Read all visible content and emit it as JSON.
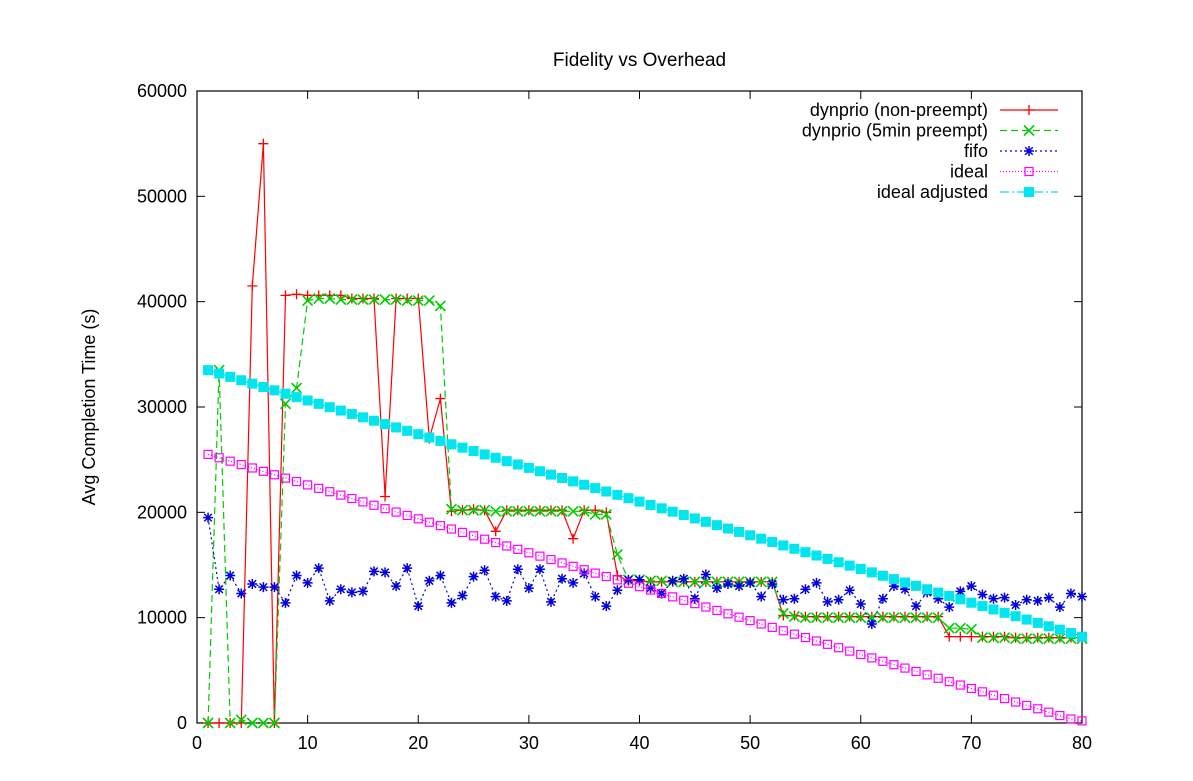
{
  "chart_data": {
    "type": "line",
    "title": "Fidelity vs Overhead",
    "xlabel": "",
    "ylabel": "Avg Completion Time (s)",
    "xlim": [
      0,
      80
    ],
    "ylim": [
      0,
      60000
    ],
    "xticks": [
      0,
      10,
      20,
      30,
      40,
      50,
      60,
      70,
      80
    ],
    "yticks": [
      0,
      10000,
      20000,
      30000,
      40000,
      50000,
      60000
    ],
    "grid": false,
    "legend_position": "top-right",
    "series": [
      {
        "name": "dynprio (non-preempt)",
        "color": "#ff0000",
        "marker": "plus",
        "dash": "",
        "x": [
          1,
          2,
          3,
          4,
          5,
          6,
          7,
          8,
          9,
          10,
          11,
          12,
          13,
          14,
          15,
          16,
          17,
          18,
          19,
          20,
          21,
          22,
          23,
          24,
          25,
          26,
          27,
          28,
          29,
          30,
          31,
          32,
          33,
          34,
          35,
          36,
          37,
          38,
          39,
          40,
          41,
          42,
          43,
          44,
          45,
          46,
          47,
          48,
          49,
          50,
          51,
          52,
          53,
          54,
          55,
          56,
          57,
          58,
          59,
          60,
          61,
          62,
          63,
          64,
          65,
          66,
          67,
          68,
          69,
          70,
          71,
          72,
          73,
          74,
          75,
          76,
          77,
          78,
          79,
          80
        ],
        "y": [
          0,
          0,
          0,
          0,
          41500,
          55000,
          0,
          40600,
          40700,
          40600,
          40600,
          40600,
          40600,
          40300,
          40300,
          40300,
          21500,
          40300,
          40300,
          40300,
          27000,
          30800,
          20100,
          20200,
          20300,
          20200,
          18200,
          20200,
          20200,
          20200,
          20200,
          20200,
          20200,
          17500,
          20200,
          20200,
          20000,
          14000,
          13500,
          13500,
          13400,
          13400,
          13400,
          13400,
          13400,
          13400,
          13400,
          13400,
          13400,
          13400,
          13400,
          13400,
          10200,
          10200,
          10100,
          10100,
          10100,
          10100,
          10100,
          10100,
          10100,
          10100,
          10100,
          10100,
          10100,
          10100,
          10100,
          8200,
          8200,
          8200,
          8200,
          8200,
          8200,
          8100,
          8100,
          8100,
          8100,
          8100,
          8100,
          8100
        ]
      },
      {
        "name": "dynprio (5min preempt)",
        "color": "#00cc00",
        "marker": "x",
        "dash": "7,4",
        "x": [
          1,
          2,
          3,
          4,
          5,
          6,
          7,
          8,
          9,
          10,
          11,
          12,
          13,
          14,
          15,
          16,
          17,
          18,
          19,
          20,
          21,
          22,
          23,
          24,
          25,
          26,
          27,
          28,
          29,
          30,
          31,
          32,
          33,
          34,
          35,
          36,
          37,
          38,
          39,
          40,
          41,
          42,
          43,
          44,
          45,
          46,
          47,
          48,
          49,
          50,
          51,
          52,
          53,
          54,
          55,
          56,
          57,
          58,
          59,
          60,
          61,
          62,
          63,
          64,
          65,
          66,
          67,
          68,
          69,
          70,
          71,
          72,
          73,
          74,
          75,
          76,
          77,
          78,
          79,
          80
        ],
        "y": [
          0,
          33500,
          0,
          300,
          0,
          0,
          0,
          30300,
          31800,
          40100,
          40300,
          40300,
          40200,
          40200,
          40200,
          40200,
          40200,
          40200,
          40100,
          40100,
          40100,
          39600,
          20300,
          20200,
          20200,
          20200,
          20100,
          20100,
          20100,
          20100,
          20100,
          20100,
          20100,
          20100,
          20100,
          19800,
          19800,
          16000,
          13600,
          13600,
          13500,
          13500,
          13400,
          13400,
          13400,
          13400,
          13400,
          13400,
          13400,
          13400,
          13400,
          13400,
          10400,
          10100,
          10000,
          10000,
          10000,
          10000,
          10000,
          10000,
          10000,
          10000,
          10000,
          10000,
          10000,
          10000,
          10000,
          9000,
          9000,
          8900,
          8100,
          8100,
          8100,
          8000,
          8000,
          8000,
          8000,
          8000,
          8000,
          8000
        ]
      },
      {
        "name": "fifo",
        "color": "#0000dd",
        "marker": "star",
        "dash": "2,3",
        "x": [
          1,
          2,
          3,
          4,
          5,
          6,
          7,
          8,
          9,
          10,
          11,
          12,
          13,
          14,
          15,
          16,
          17,
          18,
          19,
          20,
          21,
          22,
          23,
          24,
          25,
          26,
          27,
          28,
          29,
          30,
          31,
          32,
          33,
          34,
          35,
          36,
          37,
          38,
          39,
          40,
          41,
          42,
          43,
          44,
          45,
          46,
          47,
          48,
          49,
          50,
          51,
          52,
          53,
          54,
          55,
          56,
          57,
          58,
          59,
          60,
          61,
          62,
          63,
          64,
          65,
          66,
          67,
          68,
          69,
          70,
          71,
          72,
          73,
          74,
          75,
          76,
          77,
          78,
          79,
          80
        ],
        "y": [
          19500,
          12700,
          14000,
          12300,
          13200,
          12900,
          12900,
          11400,
          14000,
          13300,
          14700,
          11600,
          12700,
          12400,
          12500,
          14400,
          14300,
          13000,
          14700,
          11100,
          13500,
          14000,
          11400,
          12100,
          13900,
          14500,
          12000,
          11600,
          14600,
          12800,
          14600,
          11500,
          13700,
          13300,
          14200,
          12000,
          11100,
          12600,
          13600,
          13600,
          12800,
          12300,
          13500,
          13700,
          11800,
          14100,
          12800,
          13200,
          13000,
          13300,
          12000,
          13200,
          11700,
          11800,
          12700,
          13300,
          11500,
          11700,
          12600,
          11300,
          9400,
          11800,
          13000,
          12700,
          11100,
          12400,
          11800,
          11000,
          12500,
          13000,
          12200,
          11800,
          11900,
          11200,
          11700,
          11600,
          11900,
          11000,
          12300,
          12000
        ]
      },
      {
        "name": "ideal",
        "color": "#ff00ff",
        "marker": "square",
        "dash": "1,2",
        "x": [
          1,
          2,
          3,
          4,
          5,
          6,
          7,
          8,
          9,
          10,
          11,
          12,
          13,
          14,
          15,
          16,
          17,
          18,
          19,
          20,
          21,
          22,
          23,
          24,
          25,
          26,
          27,
          28,
          29,
          30,
          31,
          32,
          33,
          34,
          35,
          36,
          37,
          38,
          39,
          40,
          41,
          42,
          43,
          44,
          45,
          46,
          47,
          48,
          49,
          50,
          51,
          52,
          53,
          54,
          55,
          56,
          57,
          58,
          59,
          60,
          61,
          62,
          63,
          64,
          65,
          66,
          67,
          68,
          69,
          70,
          71,
          72,
          73,
          74,
          75,
          76,
          77,
          78,
          79,
          80
        ],
        "y": [
          25500,
          25178,
          24856,
          24534,
          24212,
          23890,
          23568,
          23246,
          22924,
          22602,
          22280,
          21958,
          21636,
          21314,
          20992,
          20670,
          20348,
          20026,
          19704,
          19382,
          19060,
          18738,
          18416,
          18094,
          17772,
          17450,
          17128,
          16806,
          16484,
          16162,
          15840,
          15518,
          15196,
          14874,
          14552,
          14230,
          13908,
          13586,
          13264,
          12942,
          12620,
          12298,
          11976,
          11654,
          11332,
          11010,
          10688,
          10366,
          10044,
          9722,
          9400,
          9078,
          8756,
          8434,
          8112,
          7790,
          7468,
          7146,
          6824,
          6502,
          6180,
          5858,
          5536,
          5214,
          4892,
          4570,
          4248,
          3926,
          3604,
          3282,
          2960,
          2638,
          2316,
          1994,
          1672,
          1350,
          1028,
          706,
          384,
          200
        ]
      },
      {
        "name": "ideal adjusted",
        "color": "#00e5ee",
        "marker": "filled-square",
        "dash": "9,3,2,3",
        "x": [
          1,
          2,
          3,
          4,
          5,
          6,
          7,
          8,
          9,
          10,
          11,
          12,
          13,
          14,
          15,
          16,
          17,
          18,
          19,
          20,
          21,
          22,
          23,
          24,
          25,
          26,
          27,
          28,
          29,
          30,
          31,
          32,
          33,
          34,
          35,
          36,
          37,
          38,
          39,
          40,
          41,
          42,
          43,
          44,
          45,
          46,
          47,
          48,
          49,
          50,
          51,
          52,
          53,
          54,
          55,
          56,
          57,
          58,
          59,
          60,
          61,
          62,
          63,
          64,
          65,
          66,
          67,
          68,
          69,
          70,
          71,
          72,
          73,
          74,
          75,
          76,
          77,
          78,
          79,
          80
        ],
        "y": [
          33500,
          33180,
          32860,
          32540,
          32220,
          31900,
          31580,
          31260,
          30940,
          30620,
          30300,
          29980,
          29660,
          29340,
          29020,
          28700,
          28380,
          28060,
          27740,
          27420,
          27100,
          26780,
          26460,
          26140,
          25820,
          25500,
          25180,
          24860,
          24540,
          24220,
          23900,
          23580,
          23260,
          22940,
          22620,
          22300,
          21980,
          21660,
          21340,
          21020,
          20700,
          20380,
          20060,
          19740,
          19420,
          19100,
          18780,
          18460,
          18140,
          17820,
          17500,
          17180,
          16860,
          16540,
          16220,
          15900,
          15580,
          15260,
          14940,
          14620,
          14300,
          13980,
          13660,
          13340,
          13020,
          12700,
          12380,
          12060,
          11740,
          11420,
          11100,
          10780,
          10460,
          10140,
          9820,
          9500,
          9180,
          8860,
          8540,
          8200
        ]
      }
    ]
  }
}
